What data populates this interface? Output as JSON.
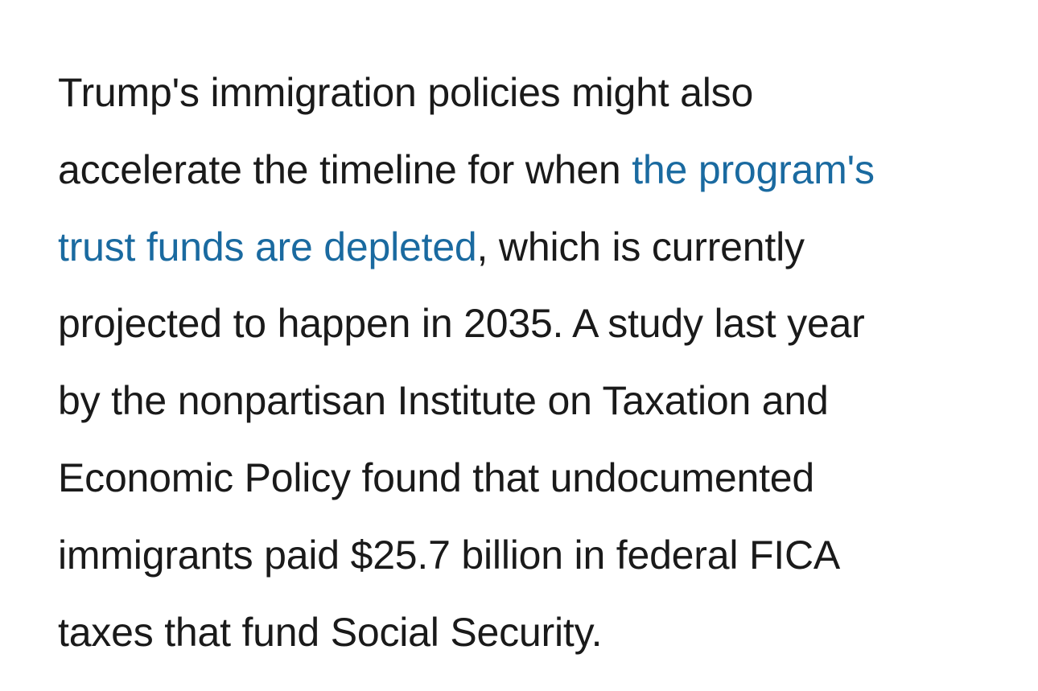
{
  "article": {
    "lines": {
      "l1": "Trump's immigration policies might also",
      "l2_pre": "accelerate the timeline for when ",
      "link_part1": "the program's",
      "link_part2": "trust funds are depleted",
      "l3_post": ", which is currently",
      "l4": "projected to happen in 2035. A study last year",
      "l5": "by the nonpartisan Institute on Taxation and",
      "l6": "Economic Policy found that undocumented",
      "l7": "immigrants paid $25.7 billion in federal FICA",
      "l8": "taxes that fund Social Security."
    },
    "link_color": "#1a6aa0",
    "text_color": "#1a1a1a"
  }
}
